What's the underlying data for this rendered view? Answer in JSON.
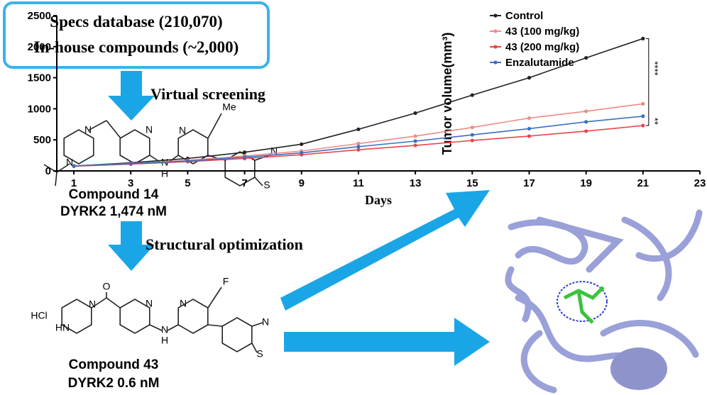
{
  "box": {
    "lines": [
      "Specs database (210,070)",
      "In-house compounds (~2,000)"
    ]
  },
  "steps": [
    "Virtual screening",
    "Structural optimization"
  ],
  "compound_14": {
    "name": "Compound 14",
    "activity": "DYRK2 1,474 nM",
    "atoms": [
      "N",
      "N",
      "N",
      "N",
      "N",
      "H",
      "Me",
      "N",
      "S"
    ]
  },
  "compound_43": {
    "name": "Compound 43",
    "activity": "DYRK2 0.6 nM",
    "atoms": [
      "HCl",
      "HN",
      "N",
      "O",
      "N",
      "N",
      "H",
      "N",
      "F",
      "N",
      "S"
    ]
  },
  "chart_data": {
    "type": "line",
    "x_label": "Days",
    "y_label": "Tumor volume(mm³)",
    "x": [
      1,
      3,
      5,
      7,
      9,
      11,
      13,
      15,
      17,
      19,
      21
    ],
    "xlim": [
      0.4,
      23
    ],
    "xticks": [
      1,
      3,
      5,
      7,
      9,
      11,
      13,
      15,
      17,
      19,
      21,
      23
    ],
    "ylim": [
      0,
      2500
    ],
    "yticks": [
      0,
      500,
      1000,
      1500,
      2000,
      2500
    ],
    "series": [
      {
        "name": "Control",
        "color": "#222222",
        "values": [
          80,
          130,
          200,
          300,
          430,
          670,
          930,
          1220,
          1500,
          1820,
          2130
        ]
      },
      {
        "name": "43 (100 mg/kg)",
        "color": "#f08a8a",
        "values": [
          80,
          120,
          170,
          240,
          320,
          440,
          560,
          700,
          850,
          960,
          1080
        ]
      },
      {
        "name": "43 (200 mg/kg)",
        "color": "#e8474a",
        "values": [
          75,
          110,
          150,
          200,
          260,
          340,
          410,
          490,
          560,
          640,
          730
        ]
      },
      {
        "name": "Enzalutamide",
        "color": "#3a6fc4",
        "values": [
          80,
          115,
          160,
          220,
          290,
          390,
          480,
          580,
          680,
          790,
          880
        ]
      }
    ],
    "annotations": [
      "****",
      "**"
    ]
  }
}
